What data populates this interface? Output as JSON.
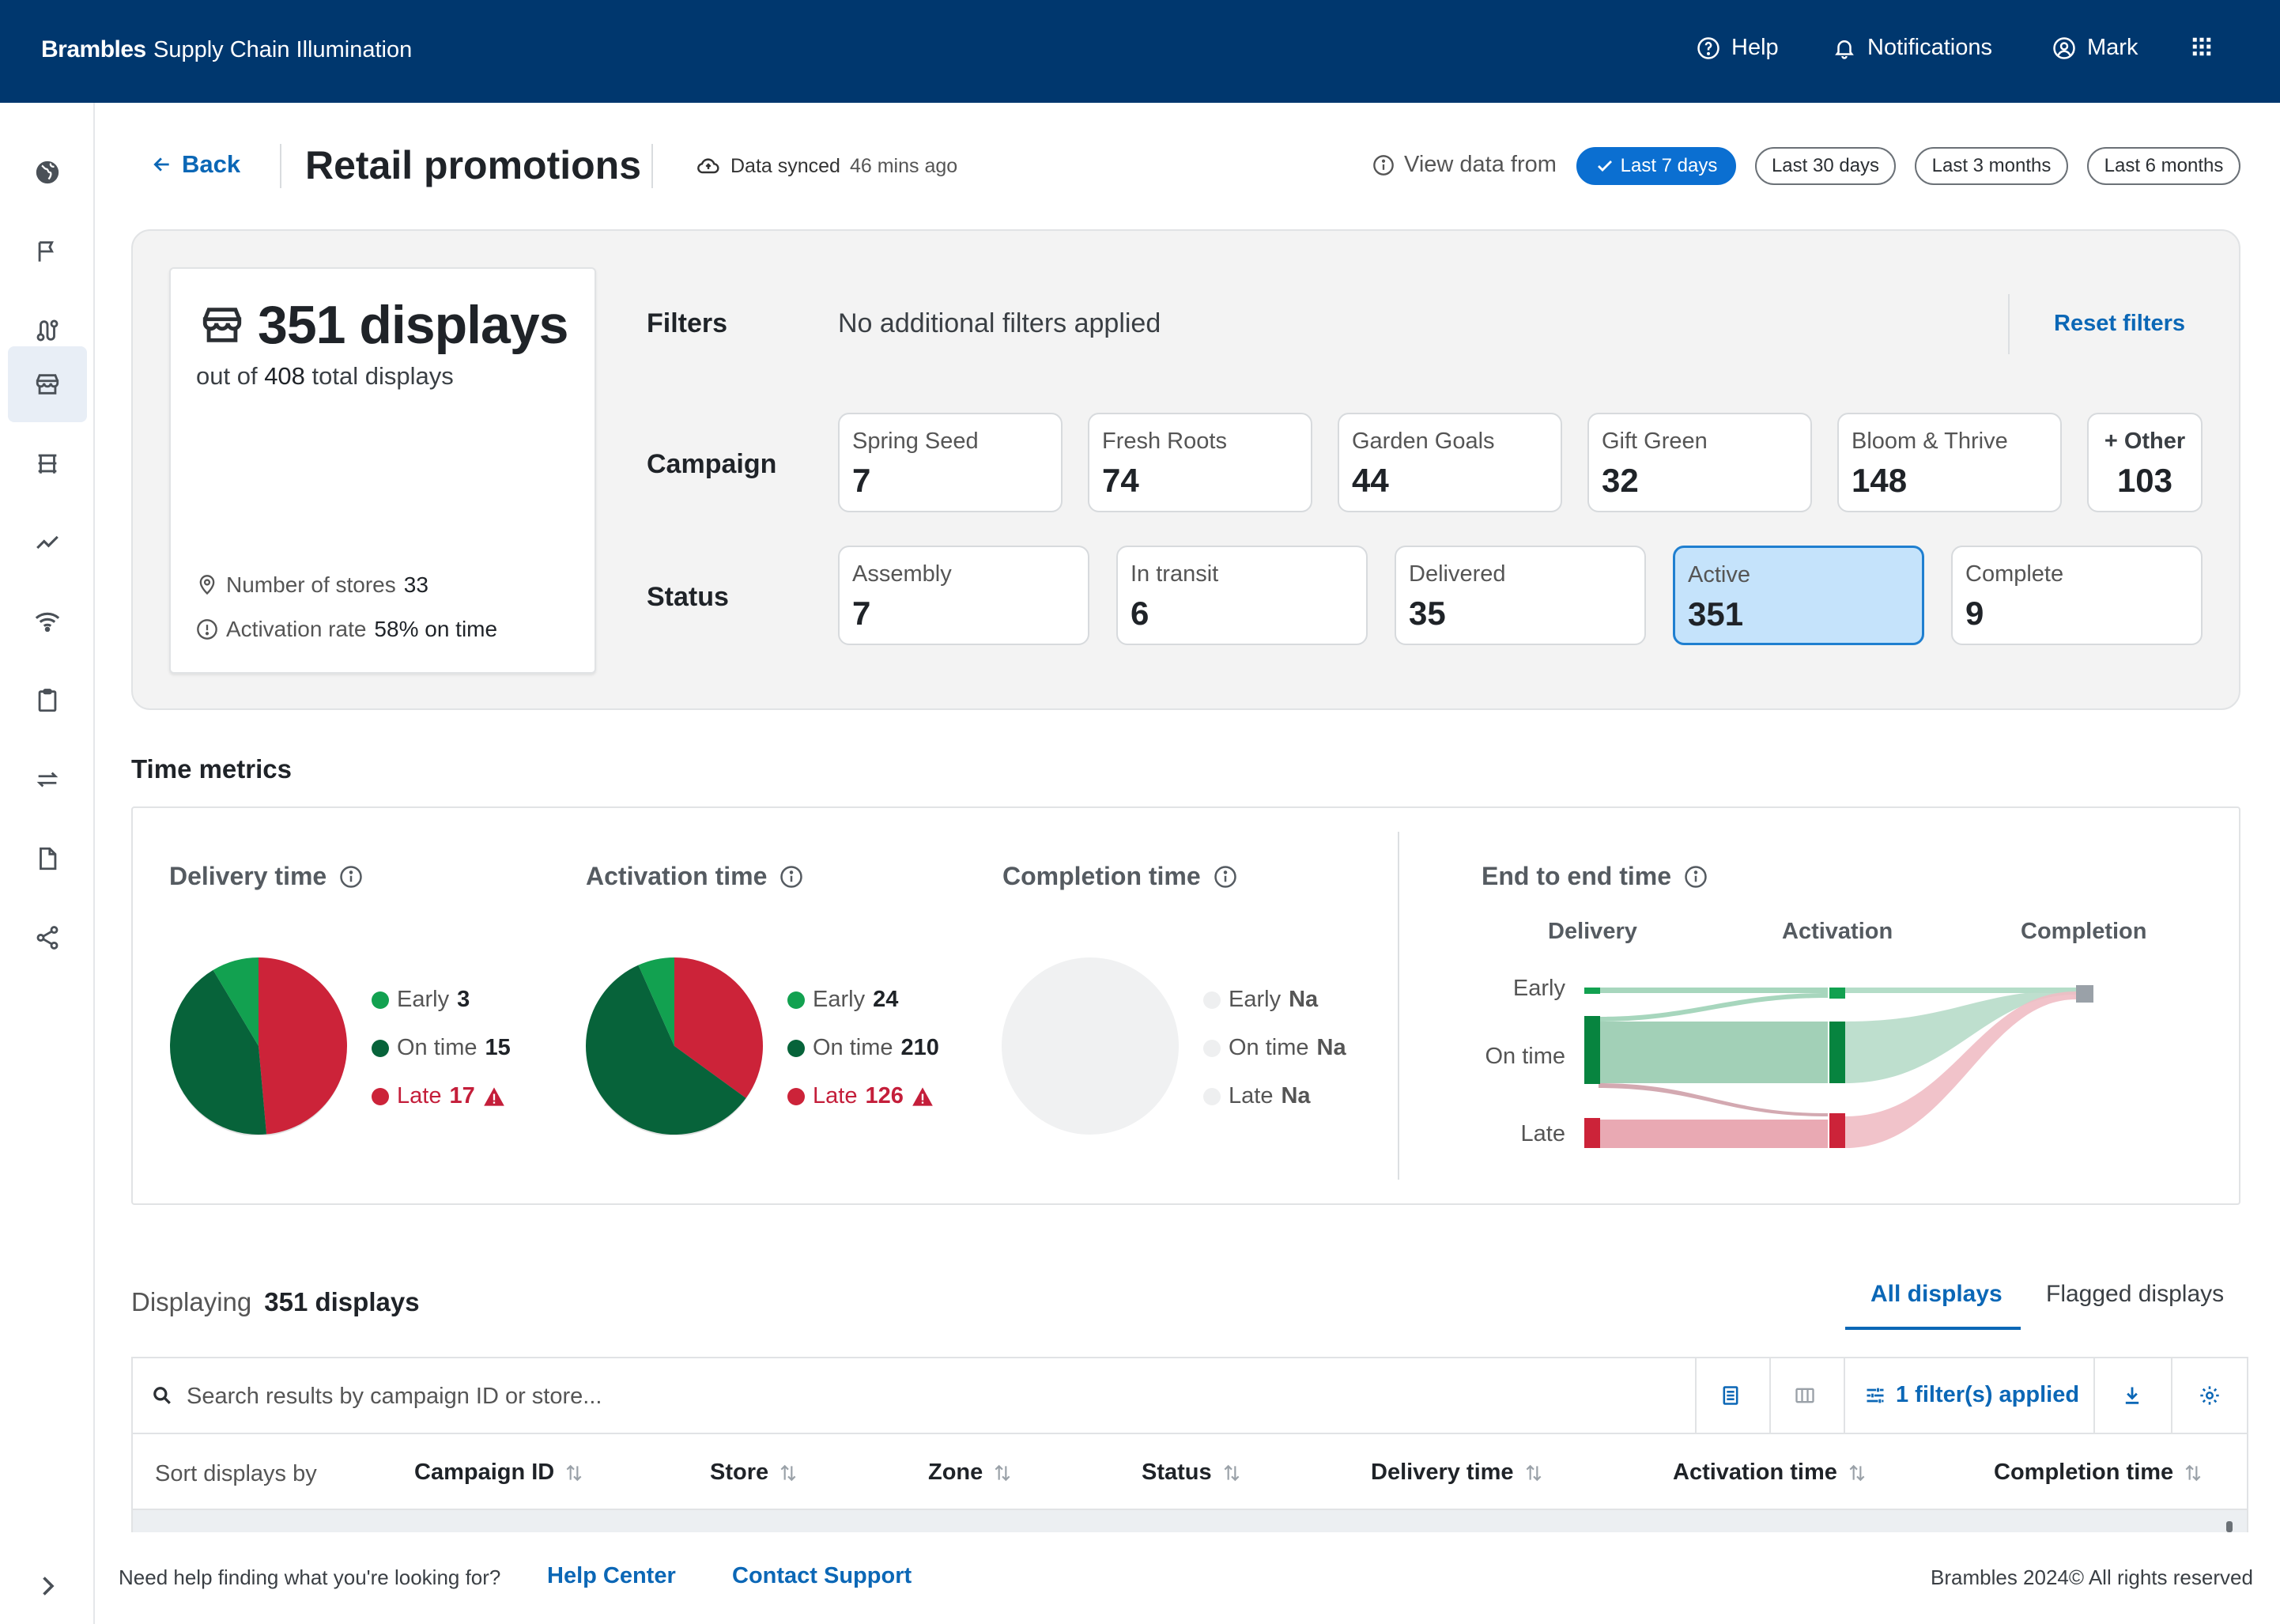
{
  "header": {
    "brand": "Brambles",
    "app_name": "Supply Chain Illumination",
    "help": "Help",
    "notifications": "Notifications",
    "user": "Mark",
    "icons": [
      "help-icon",
      "bell-icon",
      "user-icon",
      "apps-grid-icon"
    ]
  },
  "sidebar": {
    "items": [
      {
        "icon": "globe-icon"
      },
      {
        "icon": "flag-icon"
      },
      {
        "icon": "route-icon"
      },
      {
        "icon": "storefront-icon",
        "active": true
      },
      {
        "icon": "display-stand-icon"
      },
      {
        "icon": "trend-icon"
      },
      {
        "icon": "wifi-icon"
      },
      {
        "icon": "clipboard-icon"
      },
      {
        "icon": "transfer-icon"
      },
      {
        "icon": "document-icon"
      },
      {
        "icon": "share-icon"
      }
    ],
    "expand_icon": "chevron-right-icon"
  },
  "page": {
    "back": "Back",
    "title": "Retail promotions",
    "sync_label": "Data synced",
    "sync_ago": "46 mins ago",
    "view_from": "View data from",
    "ranges": [
      {
        "label": "Last 7 days",
        "selected": true
      },
      {
        "label": "Last 30 days"
      },
      {
        "label": "Last 3 months"
      },
      {
        "label": "Last 6 months"
      }
    ]
  },
  "summary": {
    "count": "351 displays",
    "out_of_prefix": "out of ",
    "total": "408",
    "out_of_suffix": " total displays",
    "stores_label": "Number of stores",
    "stores_value": "33",
    "activation_label": "Activation rate",
    "activation_value": "58% on time"
  },
  "filters": {
    "label": "Filters",
    "none": "No additional filters applied",
    "reset": "Reset filters",
    "campaign_label": "Campaign",
    "campaigns": [
      {
        "name": "Spring Seed",
        "value": "7"
      },
      {
        "name": "Fresh Roots",
        "value": "74"
      },
      {
        "name": "Garden Goals",
        "value": "44"
      },
      {
        "name": "Gift Green",
        "value": "32"
      },
      {
        "name": "Bloom & Thrive",
        "value": "148"
      }
    ],
    "other": {
      "name": "+ Other",
      "value": "103"
    },
    "status_label": "Status",
    "statuses": [
      {
        "name": "Assembly",
        "value": "7"
      },
      {
        "name": "In transit",
        "value": "6"
      },
      {
        "name": "Delivered",
        "value": "35"
      },
      {
        "name": "Active",
        "value": "351",
        "selected": true
      },
      {
        "name": "Complete",
        "value": "9"
      }
    ]
  },
  "time_metrics": {
    "title": "Time metrics",
    "colors": {
      "early": "#12a150",
      "on_time": "#07633a",
      "late": "#cc2339",
      "na": "#f0f1f2"
    },
    "delivery": {
      "title": "Delivery time",
      "early_label": "Early",
      "early": 3,
      "on_time_label": "On time",
      "on_time": 15,
      "late_label": "Late",
      "late": 17
    },
    "activation": {
      "title": "Activation time",
      "early_label": "Early",
      "early": 24,
      "on_time_label": "On time",
      "on_time": 210,
      "late_label": "Late",
      "late": 126
    },
    "completion": {
      "title": "Completion time",
      "early_label": "Early",
      "early": "Na",
      "on_time_label": "On time",
      "on_time": "Na",
      "late_label": "Late",
      "late": "Na"
    },
    "end_to_end": {
      "title": "End to end time",
      "columns": [
        "Delivery",
        "Activation",
        "Completion"
      ],
      "rows": [
        "Early",
        "On time",
        "Late"
      ]
    }
  },
  "listing": {
    "displaying_label": "Displaying",
    "displaying_value": "351 displays",
    "tabs": [
      {
        "label": "All displays",
        "active": true
      },
      {
        "label": "Flagged displays"
      }
    ],
    "search_placeholder": "Search results by campaign ID or store...",
    "filters_applied": "1 filter(s) applied",
    "sort_by": "Sort displays by",
    "columns": [
      "Campaign ID",
      "Store",
      "Zone",
      "Status",
      "Delivery time",
      "Activation time",
      "Completion time"
    ]
  },
  "footer": {
    "question": "Need help finding what you're looking for?",
    "help_center": "Help Center",
    "contact": "Contact Support",
    "copyright": "Brambles 2024© All rights reserved"
  }
}
